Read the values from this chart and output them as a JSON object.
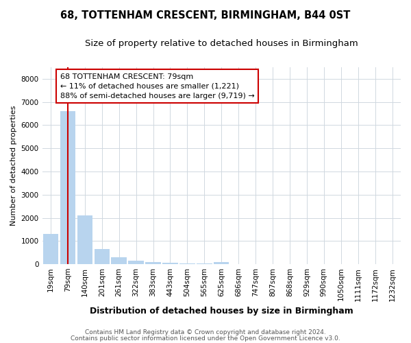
{
  "title": "68, TOTTENHAM CRESCENT, BIRMINGHAM, B44 0ST",
  "subtitle": "Size of property relative to detached houses in Birmingham",
  "xlabel": "Distribution of detached houses by size in Birmingham",
  "ylabel": "Number of detached properties",
  "categories": [
    "19sqm",
    "79sqm",
    "140sqm",
    "201sqm",
    "261sqm",
    "322sqm",
    "383sqm",
    "443sqm",
    "504sqm",
    "565sqm",
    "625sqm",
    "686sqm",
    "747sqm",
    "807sqm",
    "868sqm",
    "929sqm",
    "990sqm",
    "1050sqm",
    "1111sqm",
    "1172sqm",
    "1232sqm"
  ],
  "values": [
    1300,
    6600,
    2100,
    650,
    305,
    155,
    90,
    55,
    38,
    22,
    90,
    0,
    0,
    0,
    0,
    0,
    0,
    0,
    0,
    0,
    0
  ],
  "bar_color": "#b8d4ee",
  "vline_color": "#cc0000",
  "annotation_text": "68 TOTTENHAM CRESCENT: 79sqm\n← 11% of detached houses are smaller (1,221)\n88% of semi-detached houses are larger (9,719) →",
  "ylim_max": 8500,
  "yticks": [
    0,
    1000,
    2000,
    3000,
    4000,
    5000,
    6000,
    7000,
    8000
  ],
  "fig_bg_color": "#ffffff",
  "plot_bg_color": "#ffffff",
  "grid_color": "#d0d8e0",
  "footer_line1": "Contains HM Land Registry data © Crown copyright and database right 2024.",
  "footer_line2": "Contains public sector information licensed under the Open Government Licence v3.0.",
  "title_fontsize": 10.5,
  "subtitle_fontsize": 9.5,
  "ylabel_fontsize": 8,
  "xlabel_fontsize": 9,
  "tick_fontsize": 7.5,
  "footer_fontsize": 6.5
}
